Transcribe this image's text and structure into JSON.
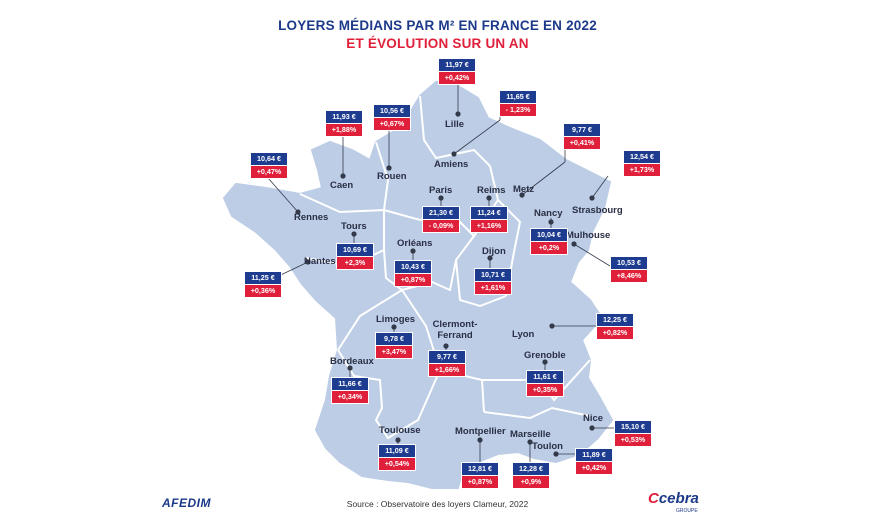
{
  "title_line1": "LOYERS MÉDIANS PAR M² EN FRANCE EN 2022",
  "title_line2": "ET ÉVOLUTION SUR UN AN",
  "source": "Source : Observatoire des loyers Clameur, 2022",
  "logo_left": "AFEDIM",
  "logo_right": "cebra",
  "logo_right_sub": "GROUPE",
  "colors": {
    "map": "#bccde5",
    "border": "#ffffff",
    "price": "#1d3c8f",
    "evolution": "#e0203a"
  },
  "cities": [
    {
      "name": "Lille",
      "price": "11,97 €",
      "evolution": "+0,42%"
    },
    {
      "name": "Amiens",
      "price": "11,65 €",
      "evolution": "- 1,23%"
    },
    {
      "name": "Rouen",
      "price": "10,56 €",
      "evolution": "+0,67%"
    },
    {
      "name": "Caen",
      "price": "11,93 €",
      "evolution": "+1,88%"
    },
    {
      "name": "Metz",
      "price": "9,77 €",
      "evolution": "+0,41%"
    },
    {
      "name": "Strasbourg",
      "price": "12,54 €",
      "evolution": "+1,73%"
    },
    {
      "name": "Rennes",
      "price": "10,64 €",
      "evolution": "+0,47%"
    },
    {
      "name": "Paris",
      "price": "21,30 €",
      "evolution": "- 0,09%"
    },
    {
      "name": "Reims",
      "price": "11,24 €",
      "evolution": "+1,16%"
    },
    {
      "name": "Nancy",
      "price": "10,04 €",
      "evolution": "+0,2%"
    },
    {
      "name": "Mulhouse",
      "price": "10,53 €",
      "evolution": "+8,46%"
    },
    {
      "name": "Tours",
      "price": "10,69 €",
      "evolution": "+2,3%"
    },
    {
      "name": "Nantes",
      "price": "11,25 €",
      "evolution": "+0,36%"
    },
    {
      "name": "Orléans",
      "price": "10,43 €",
      "evolution": "+0,87%"
    },
    {
      "name": "Dijon",
      "price": "10,71 €",
      "evolution": "+1,61%"
    },
    {
      "name": "Lyon",
      "price": "12,25 €",
      "evolution": "+0,82%"
    },
    {
      "name": "Limoges",
      "price": "9,78 €",
      "evolution": "+3,47%"
    },
    {
      "name": "Clermont-Ferrand",
      "price": "9,77 €",
      "evolution": "+1,66%"
    },
    {
      "name": "Bordeaux",
      "price": "11,66 €",
      "evolution": "+0,34%"
    },
    {
      "name": "Grenoble",
      "price": "11,61 €",
      "evolution": "+0,35%"
    },
    {
      "name": "Nice",
      "price": "15,10 €",
      "evolution": "+0,53%"
    },
    {
      "name": "Toulouse",
      "price": "11,09 €",
      "evolution": "+0,54%"
    },
    {
      "name": "Montpellier",
      "price": "12,81 €",
      "evolution": "+0,87%"
    },
    {
      "name": "Marseille",
      "price": "12,28 €",
      "evolution": "+0,9%"
    },
    {
      "name": "Toulon",
      "price": "11,89 €",
      "evolution": "+0,42%"
    }
  ]
}
